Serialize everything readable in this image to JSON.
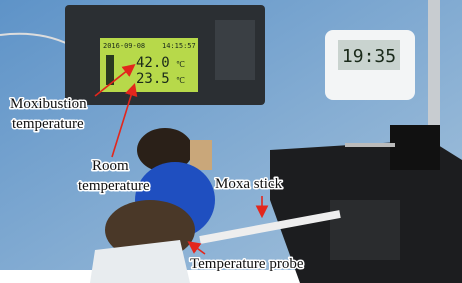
{
  "recorder": {
    "date": "2016-09-08",
    "time": "14:15:57",
    "moxibustion_reading": "42.0",
    "room_reading": "23.5",
    "unit": "℃"
  },
  "timer": {
    "display": "19:35"
  },
  "annotations": {
    "moxibustion_temperature": [
      "Moxibustion",
      "temperature"
    ],
    "room_temperature": [
      "Room",
      "temperature"
    ],
    "moxa_stick": "Moxa stick",
    "temperature_probe": "Temperature probe"
  }
}
